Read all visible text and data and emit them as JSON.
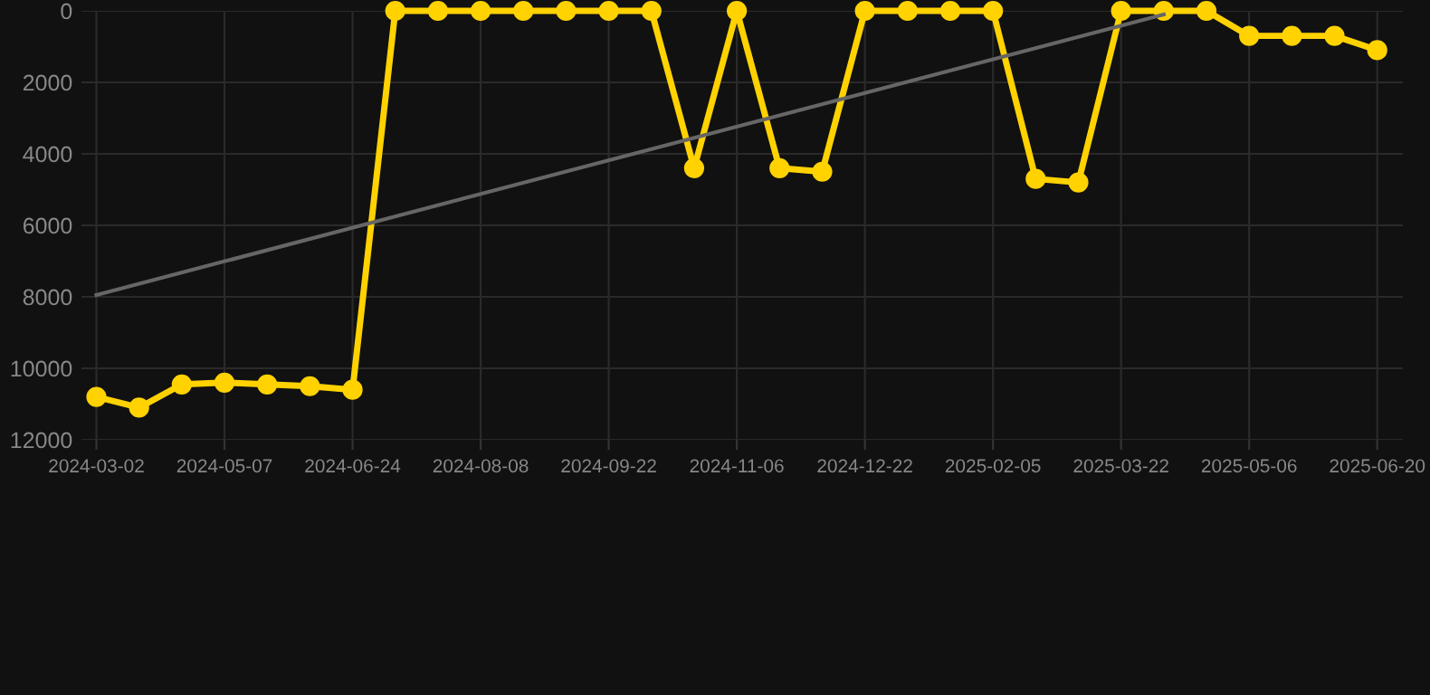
{
  "chart_data": {
    "type": "line",
    "categories": [
      "2024-03-02",
      null,
      null,
      "2024-05-07",
      null,
      null,
      "2024-06-24",
      null,
      null,
      "2024-08-08",
      null,
      null,
      "2024-09-22",
      null,
      null,
      "2024-11-06",
      null,
      null,
      "2024-12-22",
      null,
      null,
      "2025-02-05",
      null,
      null,
      "2025-03-22",
      null,
      null,
      "2025-05-06",
      null,
      null,
      "2025-06-20"
    ],
    "series": [
      {
        "color": "#666666",
        "marker": "none",
        "values": [
          7950,
          null,
          null,
          null,
          null,
          null,
          null,
          null,
          null,
          null,
          null,
          null,
          null,
          null,
          null,
          null,
          null,
          null,
          null,
          null,
          null,
          null,
          null,
          null,
          null,
          100,
          null,
          null,
          null,
          null,
          null
        ]
      },
      {
        "color": "#ffd200",
        "marker": "circle",
        "values": [
          10800,
          11100,
          10450,
          10400,
          10450,
          10500,
          10600,
          0,
          0,
          0,
          0,
          0,
          0,
          0,
          4400,
          0,
          4400,
          4500,
          0,
          0,
          0,
          0,
          4700,
          4800,
          0,
          0,
          0,
          700,
          700,
          700,
          1100
        ]
      }
    ],
    "ylim": [
      12000,
      0
    ],
    "yticks": [
      0,
      2000,
      4000,
      6000,
      8000,
      10000,
      12000
    ],
    "grid": true,
    "legend": false
  }
}
